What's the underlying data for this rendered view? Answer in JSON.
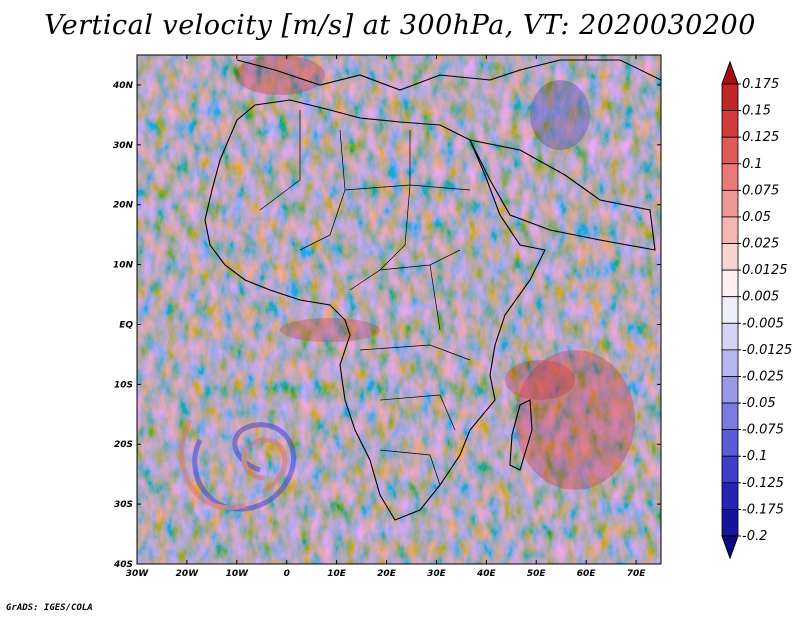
{
  "title": "Vertical velocity [m/s] at 300hPa, VT: 2020030200",
  "credit": "GrADS: IGES/COLA",
  "map": {
    "region": "Africa",
    "lon_ticks": [
      "30W",
      "20W",
      "10W",
      "0",
      "10E",
      "20E",
      "30E",
      "40E",
      "50E",
      "60E",
      "70E"
    ],
    "lat_ticks": [
      "40N",
      "30N",
      "20N",
      "10N",
      "EQ",
      "10S",
      "20S",
      "30S",
      "40S"
    ],
    "lon_range": [
      -30,
      75
    ],
    "lat_range": [
      -40,
      45
    ]
  },
  "colorbar": {
    "labels": [
      "0.175",
      "0.15",
      "0.125",
      "0.1",
      "0.075",
      "0.05",
      "0.025",
      "0.0125",
      "0.005",
      "-0.005",
      "-0.0125",
      "-0.025",
      "-0.05",
      "-0.075",
      "-0.1",
      "-0.125",
      "-0.175",
      "-0.2"
    ],
    "colors": [
      "#a50f15",
      "#c0252a",
      "#d53a3c",
      "#e05a5a",
      "#e97a79",
      "#f09896",
      "#f5b7b4",
      "#f9d4d1",
      "#fdf0ef",
      "#eeeefc",
      "#d4d4f7",
      "#b7b7f0",
      "#9898e8",
      "#7a7ae0",
      "#5c5cd6",
      "#3e3ec8",
      "#2626b4",
      "#14149c",
      "#0a0a82"
    ]
  }
}
